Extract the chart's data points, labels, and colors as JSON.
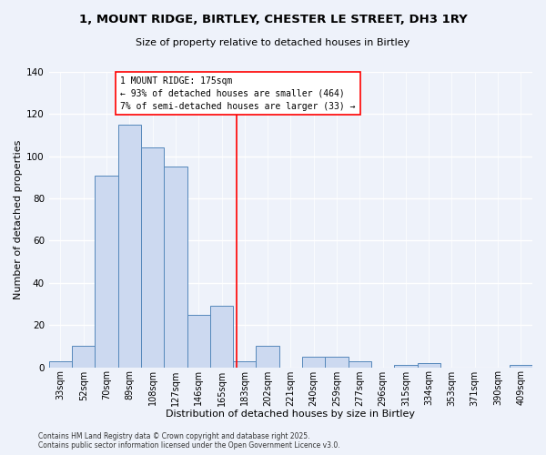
{
  "title": "1, MOUNT RIDGE, BIRTLEY, CHESTER LE STREET, DH3 1RY",
  "subtitle": "Size of property relative to detached houses in Birtley",
  "xlabel": "Distribution of detached houses by size in Birtley",
  "ylabel": "Number of detached properties",
  "bar_color": "#ccd9f0",
  "bar_edge_color": "#5588bb",
  "background_color": "#eef2fa",
  "grid_color": "#ffffff",
  "bin_labels": [
    "33sqm",
    "52sqm",
    "70sqm",
    "89sqm",
    "108sqm",
    "127sqm",
    "146sqm",
    "165sqm",
    "183sqm",
    "202sqm",
    "221sqm",
    "240sqm",
    "259sqm",
    "277sqm",
    "296sqm",
    "315sqm",
    "334sqm",
    "353sqm",
    "371sqm",
    "390sqm",
    "409sqm"
  ],
  "bar_heights": [
    3,
    10,
    91,
    115,
    104,
    95,
    25,
    29,
    3,
    10,
    0,
    5,
    5,
    3,
    0,
    1,
    2,
    0,
    0,
    0,
    1
  ],
  "vline_x": 7.65,
  "vline_label": "1 MOUNT RIDGE: 175sqm",
  "annotation_line1": "← 93% of detached houses are smaller (464)",
  "annotation_line2": "7% of semi-detached houses are larger (33) →",
  "ylim": [
    0,
    140
  ],
  "yticks": [
    0,
    20,
    40,
    60,
    80,
    100,
    120,
    140
  ],
  "footnote1": "Contains HM Land Registry data © Crown copyright and database right 2025.",
  "footnote2": "Contains public sector information licensed under the Open Government Licence v3.0."
}
